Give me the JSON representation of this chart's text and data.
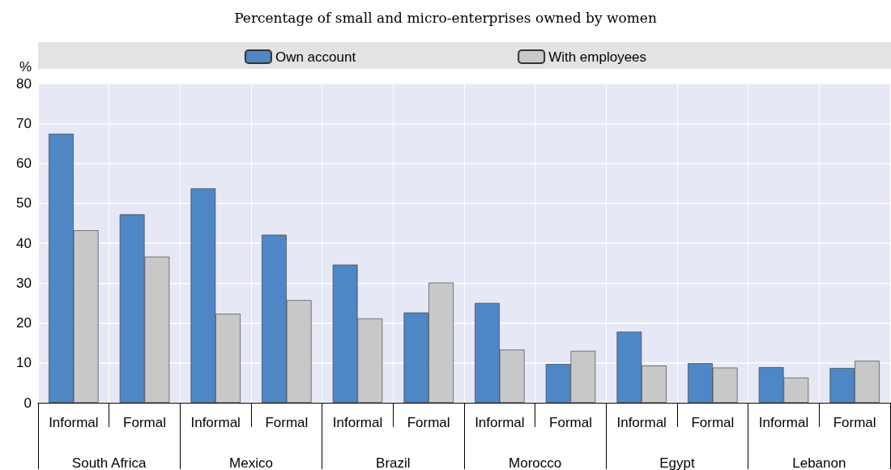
{
  "chart_data": {
    "type": "bar",
    "title": "Percentage of small and micro-enterprises owned by women",
    "ylabel": "%",
    "categories": [
      "Informal",
      "Formal",
      "Informal",
      "Formal",
      "Informal",
      "Formal",
      "Informal",
      "Formal",
      "Informal",
      "Formal",
      "Informal",
      "Formal"
    ],
    "annotations": [
      "South Africa",
      "Mexico",
      "Brazil",
      "Morocco",
      "Egypt",
      "Lebanon"
    ],
    "series": [
      {
        "name": "Own account",
        "color": "#4e86c6",
        "values": [
          67.4,
          47.2,
          53.7,
          42.1,
          34.6,
          22.6,
          25.0,
          9.7,
          17.8,
          9.9,
          8.9,
          8.7
        ]
      },
      {
        "name": "With employees",
        "color": "#c8c8c9",
        "values": [
          43.2,
          36.6,
          22.3,
          25.7,
          21.1,
          30.1,
          13.3,
          13.0,
          9.3,
          8.8,
          6.3,
          10.5
        ]
      }
    ],
    "ylim": [
      0,
      80
    ],
    "yticks": [
      0,
      10,
      20,
      30,
      40,
      50,
      60,
      70,
      80
    ],
    "grid": true,
    "legend": "top"
  }
}
